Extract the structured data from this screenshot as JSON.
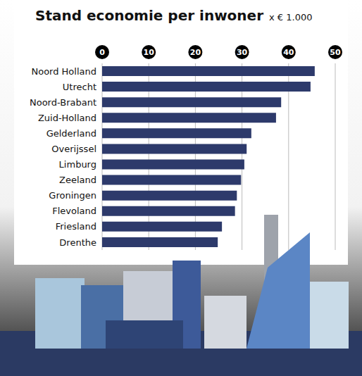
{
  "chart_data": {
    "type": "bar",
    "title": "Stand economie per inwoner",
    "subtitle": "x € 1.000",
    "orientation": "horizontal",
    "categories": [
      "Noord Holland",
      "Utrecht",
      "Noord-Brabant",
      "Zuid-Holland",
      "Gelderland",
      "Overijssel",
      "Limburg",
      "Zeeland",
      "Groningen",
      "Flevoland",
      "Friesland",
      "Drenthe"
    ],
    "values": [
      45.6,
      44.7,
      38.4,
      37.3,
      32.0,
      31.0,
      30.5,
      29.8,
      28.9,
      28.5,
      25.7,
      24.8
    ],
    "color": "#2d3a6b",
    "xlim": [
      0,
      50
    ],
    "xticks": [
      0,
      10,
      20,
      30,
      40,
      50
    ],
    "grid": true
  }
}
